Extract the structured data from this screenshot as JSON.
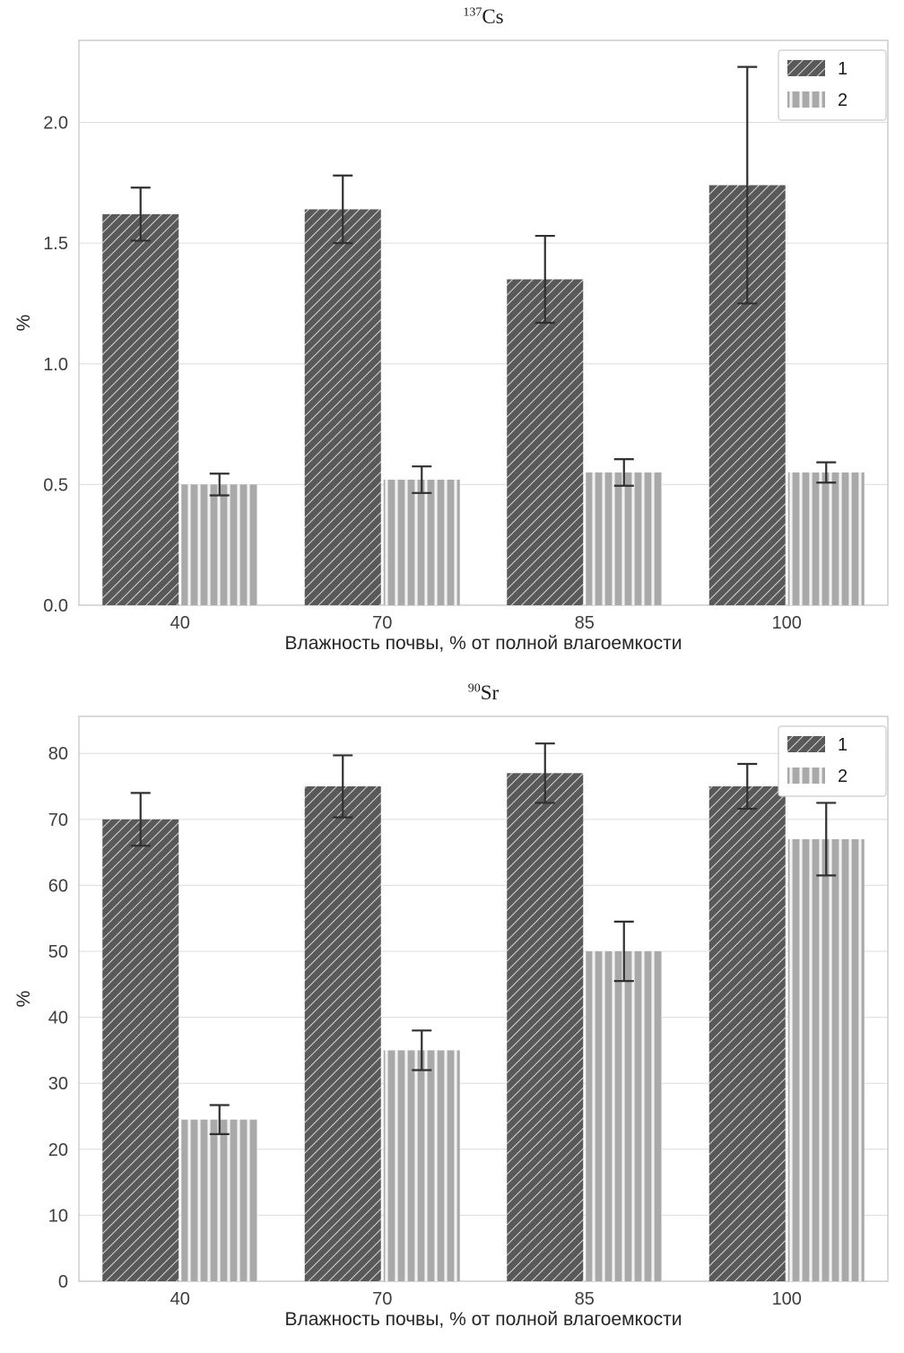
{
  "chart_data": [
    {
      "type": "bar",
      "title": "¹³⁷Cs",
      "title_superscript": "137",
      "title_base": "Cs",
      "xlabel": "Влажность почвы, % от полной влагоемкости",
      "ylabel": "%",
      "categories": [
        "40",
        "70",
        "85",
        "100"
      ],
      "series": [
        {
          "name": "1",
          "values": [
            1.62,
            1.64,
            1.35,
            1.74
          ],
          "errors": [
            0.11,
            0.14,
            0.18,
            0.49
          ],
          "color": "#595959",
          "hatch": "diagonal",
          "hatch_color": "#d6d6d6"
        },
        {
          "name": "2",
          "values": [
            0.5,
            0.52,
            0.55,
            0.55
          ],
          "errors": [
            0.045,
            0.055,
            0.055,
            0.042
          ],
          "color": "#a9a9a9",
          "hatch": "vertical",
          "hatch_color": "#f2f2f2"
        }
      ],
      "ylim": [
        0,
        2.34
      ],
      "yticks": [
        0,
        0.5,
        1,
        1.5,
        2
      ],
      "ytick_labels": [
        "0.0",
        "0.5",
        "1.0",
        "1.5",
        "2.0"
      ],
      "grid": "horizontal",
      "grid_color": "#dcdcdc",
      "error_bar_color": "#303030",
      "legend": {
        "position": "upper right",
        "labels": [
          "1",
          "2"
        ]
      }
    },
    {
      "type": "bar",
      "title": "⁹⁰Sr",
      "title_superscript": "90",
      "title_base": "Sr",
      "xlabel": "Влажность почвы, % от полной влагоемкости",
      "ylabel": "%",
      "categories": [
        "40",
        "70",
        "85",
        "100"
      ],
      "series": [
        {
          "name": "1",
          "values": [
            70,
            75,
            77,
            75
          ],
          "errors": [
            4,
            4.7,
            4.5,
            3.4
          ],
          "color": "#595959",
          "hatch": "diagonal",
          "hatch_color": "#d6d6d6"
        },
        {
          "name": "2",
          "values": [
            24.5,
            35,
            50,
            67
          ],
          "errors": [
            2.2,
            3,
            4.5,
            5.5
          ],
          "color": "#a9a9a9",
          "hatch": "vertical",
          "hatch_color": "#f2f2f2"
        }
      ],
      "ylim": [
        0,
        85.6
      ],
      "yticks": [
        0,
        10,
        20,
        30,
        40,
        50,
        60,
        70,
        80
      ],
      "ytick_labels": [
        "0",
        "10",
        "20",
        "30",
        "40",
        "50",
        "60",
        "70",
        "80"
      ],
      "grid": "horizontal",
      "grid_color": "#dcdcdc",
      "error_bar_color": "#303030",
      "legend": {
        "position": "upper right",
        "labels": [
          "1",
          "2"
        ]
      }
    }
  ]
}
